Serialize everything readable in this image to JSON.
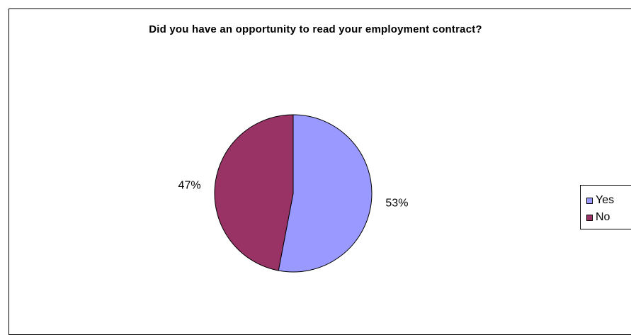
{
  "chart_data": {
    "type": "pie",
    "title": "Did you have an opportunity to read your employment contract?",
    "categories": [
      "Yes",
      "No"
    ],
    "values": [
      53,
      47
    ],
    "data_labels": [
      "53%",
      "47%"
    ],
    "colors": [
      "#9999ff",
      "#993366"
    ],
    "legend_position": "right"
  }
}
